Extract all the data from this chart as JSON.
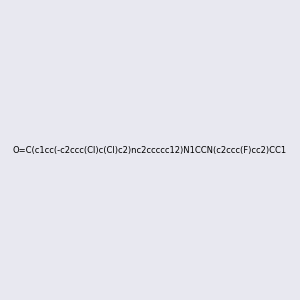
{
  "smiles": "O=C(c1cc(-c2ccc(Cl)c(Cl)c2)nc2ccccc12)N1CCN(c2ccc(F)cc2)CC1",
  "title": "",
  "background_color": "#e8e8f0",
  "bond_color": "#000000",
  "atom_colors": {
    "N": "#0000ff",
    "O": "#ff0000",
    "Cl": "#00cc00",
    "F": "#ff00ff"
  },
  "figsize": [
    3.0,
    3.0
  ],
  "dpi": 100
}
